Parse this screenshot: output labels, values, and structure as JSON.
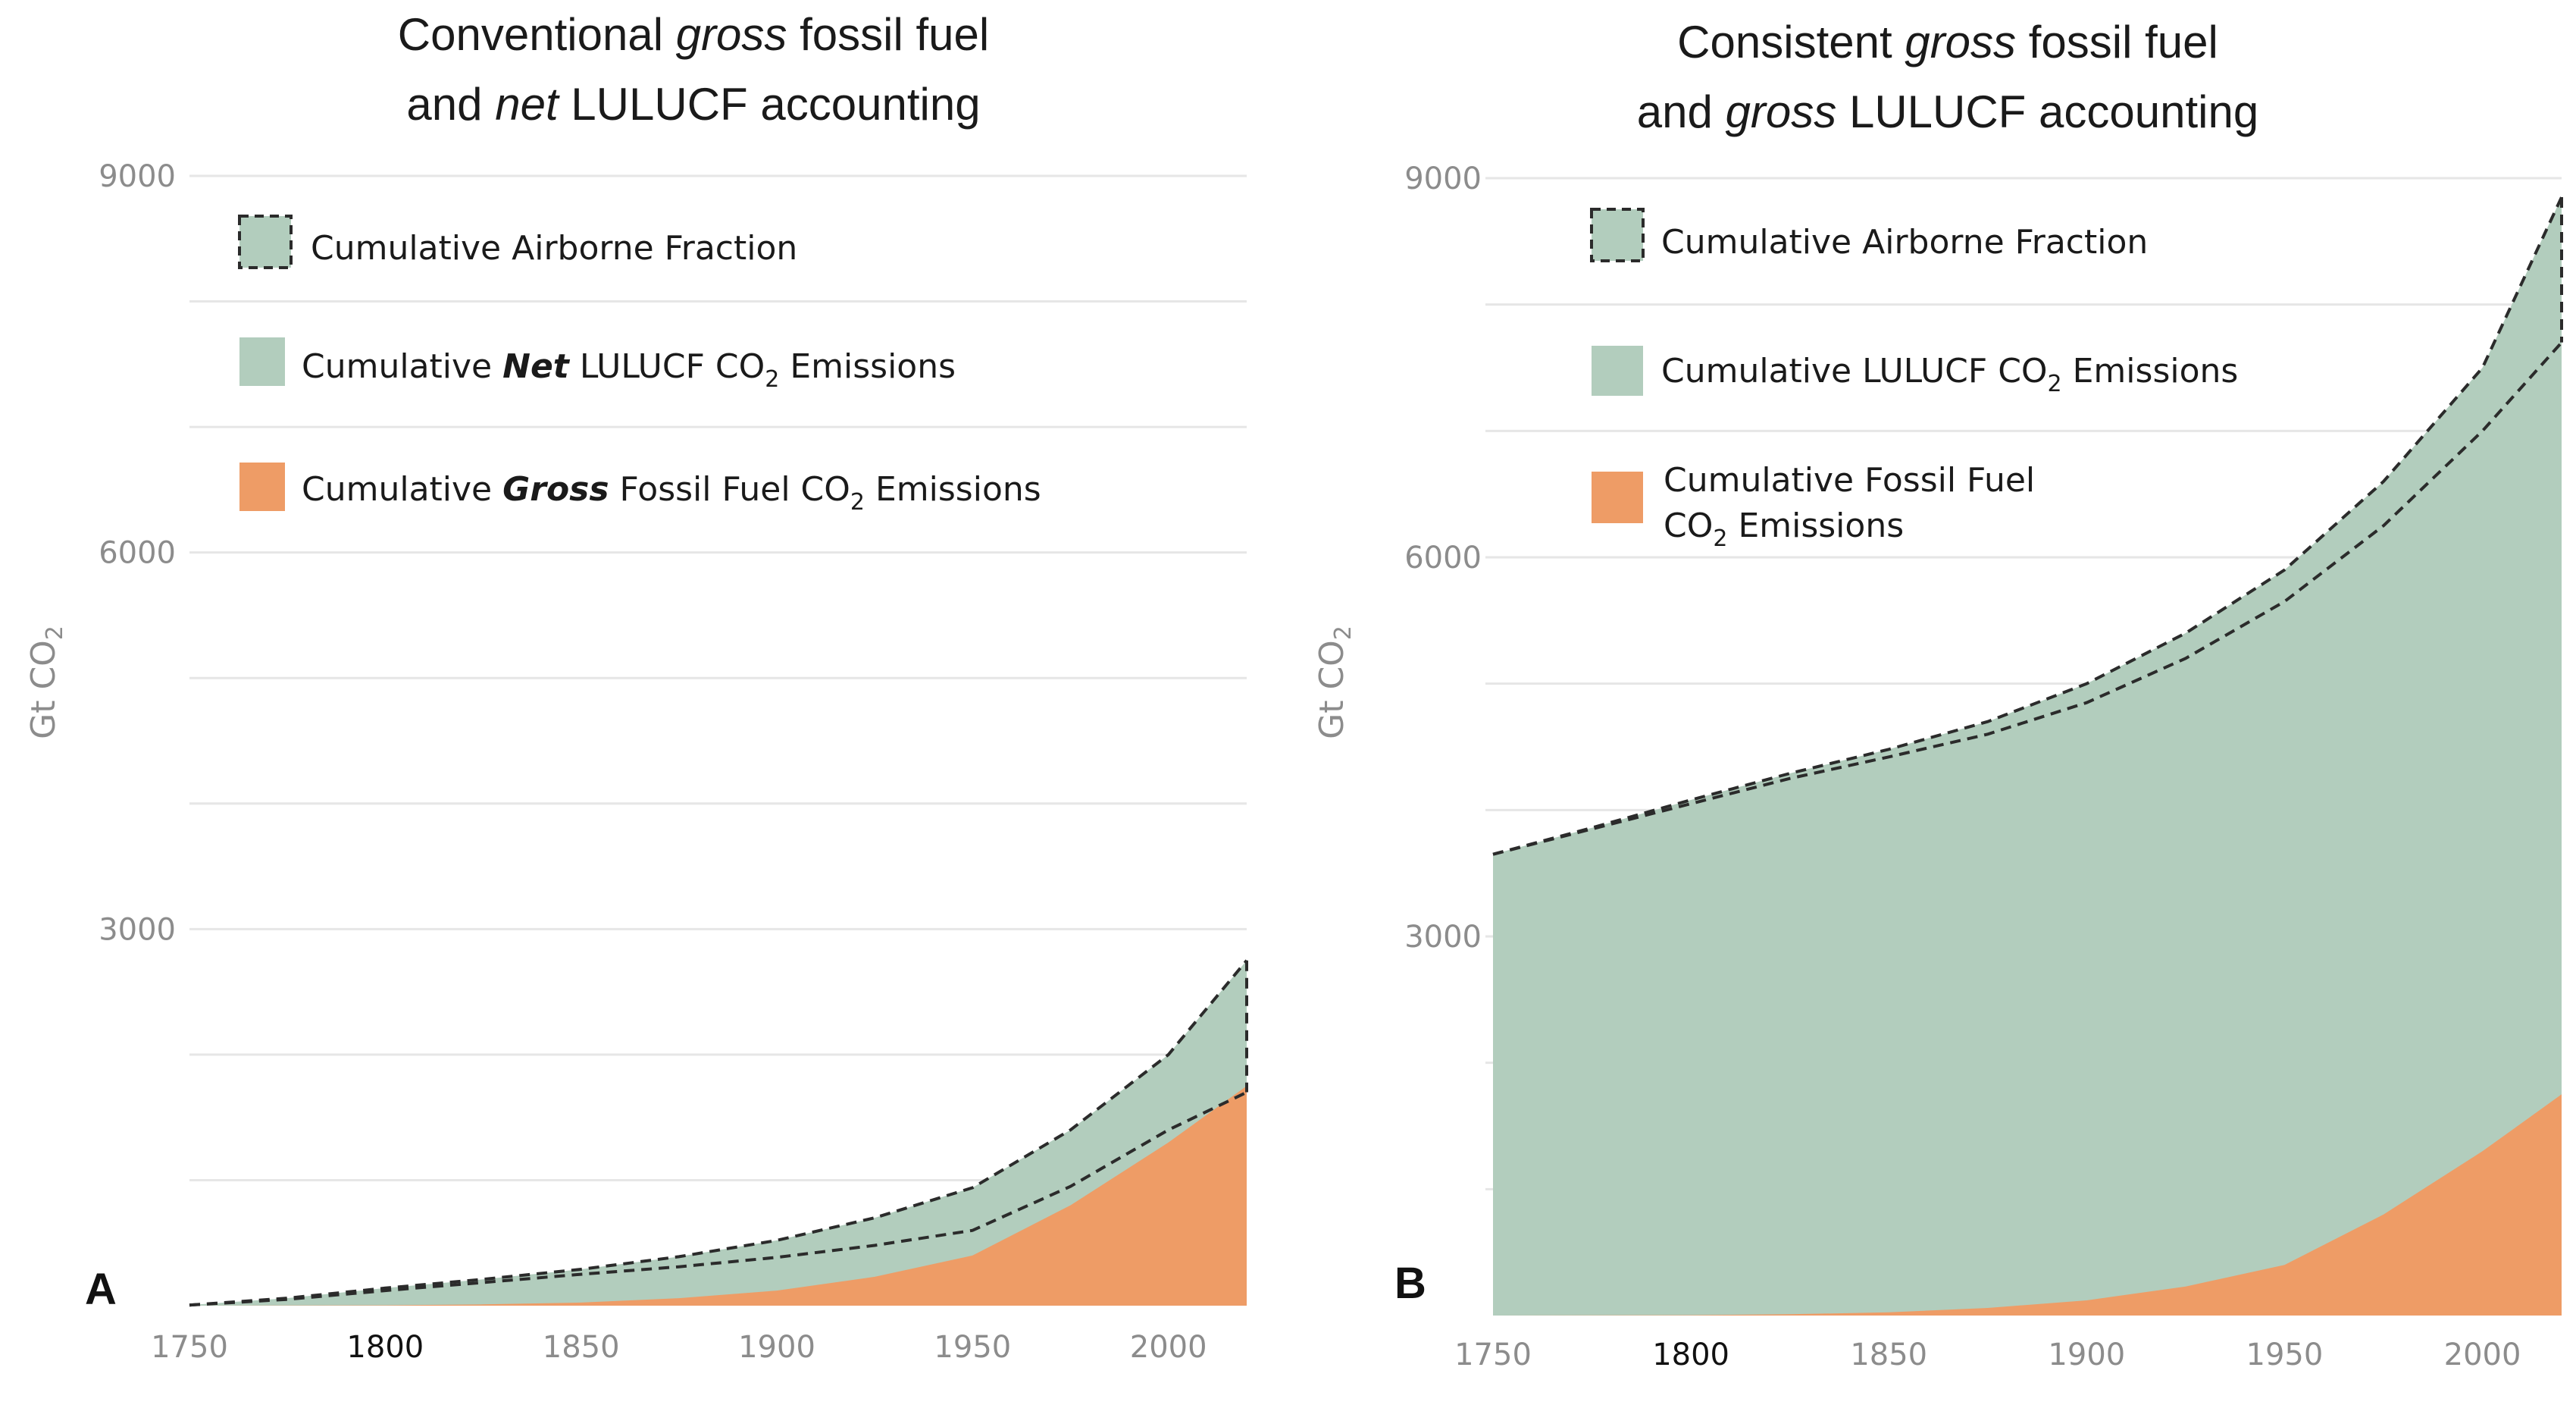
{
  "colors": {
    "airborne": "#b2cdbd",
    "lulucf": "#b2cdbd",
    "fossil": "#ee9c66",
    "grid": "#e6e6e6",
    "dash": "#2b2b2b"
  },
  "chart_data": [
    {
      "type": "area",
      "panel_letter": "A",
      "title": {
        "line1_pre": "Conventional ",
        "line1_em": "gross",
        "line1_post": " fossil fuel",
        "line2_pre": "and ",
        "line2_em": "net",
        "line2_post": " LULUCF accounting"
      },
      "ylabel": "Gt CO2",
      "ylim": [
        0,
        9000
      ],
      "yticks": [
        "9000",
        "6000",
        "3000"
      ],
      "xticks": [
        "1750",
        "1800",
        "1850",
        "1900",
        "1950",
        "2000"
      ],
      "xlim": [
        1750,
        2020
      ],
      "grid": true,
      "legend_placement": "top-left",
      "legend": [
        {
          "pre": "Cumulative Airborne Fraction",
          "em": "",
          "post": "",
          "sub": ""
        },
        {
          "pre": "Cumulative ",
          "em": "Net",
          "post": " LULUCF CO",
          "sub": "2",
          "tail": " Emissions"
        },
        {
          "pre": "Cumulative ",
          "em": "Gross",
          "post": " Fossil Fuel CO",
          "sub": "2",
          "tail": " Emissions"
        }
      ],
      "x": [
        1750,
        1775,
        1800,
        1825,
        1850,
        1875,
        1900,
        1925,
        1950,
        1975,
        2000,
        2020
      ],
      "series": [
        {
          "name": "Cumulative Gross Fossil Fuel CO2 Emissions",
          "values": [
            0,
            1,
            3,
            10,
            25,
            60,
            120,
            230,
            400,
            800,
            1300,
            1750
          ]
        },
        {
          "name": "Cumulative Net LULUCF CO2 Emissions",
          "values": [
            5,
            50,
            120,
            185,
            250,
            310,
            385,
            480,
            600,
            950,
            1400,
            1700
          ]
        },
        {
          "name": "Cumulative Airborne Fraction",
          "values": [
            5,
            60,
            140,
            210,
            290,
            390,
            520,
            700,
            940,
            1400,
            2000,
            2750
          ]
        }
      ]
    },
    {
      "type": "area",
      "panel_letter": "B",
      "title": {
        "line1_pre": "Consistent ",
        "line1_em": "gross",
        "line1_post": " fossil fuel",
        "line2_pre": "and ",
        "line2_em": "gross",
        "line2_post": " LULUCF accounting"
      },
      "ylabel": "Gt CO2",
      "ylim": [
        0,
        9000
      ],
      "yticks": [
        "9000",
        "6000",
        "3000"
      ],
      "xticks": [
        "1750",
        "1800",
        "1850",
        "1900",
        "1950",
        "2000"
      ],
      "xlim": [
        1750,
        2020
      ],
      "grid": true,
      "legend_placement": "top-left",
      "legend": [
        {
          "pre": "Cumulative Airborne Fraction",
          "em": "",
          "post": "",
          "sub": ""
        },
        {
          "pre": "Cumulative LULUCF CO",
          "em": "",
          "post": "",
          "sub": "2",
          "tail": " Emissions"
        },
        {
          "pre": "Cumulative Fossil Fuel",
          "em": "",
          "post": "",
          "sub": "",
          "line2_pre": "CO",
          "line2_sub": "2",
          "line2_tail": " Emissions"
        }
      ],
      "x": [
        1750,
        1775,
        1800,
        1825,
        1850,
        1875,
        1900,
        1925,
        1950,
        1975,
        2000,
        2020
      ],
      "series": [
        {
          "name": "Cumulative Fossil Fuel CO2 Emissions",
          "values": [
            0,
            1,
            3,
            10,
            25,
            60,
            120,
            230,
            400,
            800,
            1300,
            1750
          ]
        },
        {
          "name": "Cumulative LULUCF CO2 Emissions",
          "values": [
            3650,
            3850,
            4050,
            4250,
            4420,
            4600,
            4850,
            5200,
            5650,
            6250,
            7000,
            7700
          ]
        },
        {
          "name": "Cumulative Airborne Fraction",
          "values": [
            3650,
            3860,
            4080,
            4290,
            4480,
            4700,
            5000,
            5400,
            5900,
            6600,
            7500,
            8850
          ]
        }
      ]
    }
  ]
}
